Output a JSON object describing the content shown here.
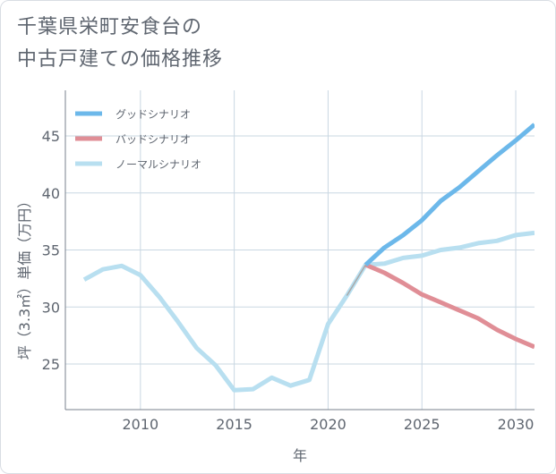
{
  "chart_data": {
    "type": "line",
    "title_line1": "千葉県栄町安食台の",
    "title_line2": "中古戸建ての価格推移",
    "xlabel": "年",
    "ylabel": "坪（3.3㎡）単価（万円）",
    "xlim": [
      2006,
      2031
    ],
    "ylim": [
      21,
      49
    ],
    "xticks": [
      2010,
      2015,
      2020,
      2025,
      2030
    ],
    "yticks": [
      25,
      30,
      35,
      40,
      45
    ],
    "grid": true,
    "legend_position": "top-left",
    "series": [
      {
        "name": "グッドシナリオ",
        "color": "#6cb8ea",
        "points": [
          [
            2022,
            33.7
          ],
          [
            2023,
            35.2
          ],
          [
            2024,
            36.3
          ],
          [
            2025,
            37.6
          ],
          [
            2026,
            39.3
          ],
          [
            2027,
            40.5
          ],
          [
            2028,
            41.9
          ],
          [
            2029,
            43.3
          ],
          [
            2030,
            44.6
          ],
          [
            2031,
            46.0
          ]
        ]
      },
      {
        "name": "バッドシナリオ",
        "color": "#e08e96",
        "points": [
          [
            2022,
            33.7
          ],
          [
            2023,
            33.0
          ],
          [
            2024,
            32.1
          ],
          [
            2025,
            31.1
          ],
          [
            2026,
            30.4
          ],
          [
            2027,
            29.7
          ],
          [
            2028,
            29.0
          ],
          [
            2029,
            28.0
          ],
          [
            2030,
            27.2
          ],
          [
            2031,
            26.5
          ]
        ]
      },
      {
        "name": "ノーマルシナリオ",
        "color": "#b8dff0",
        "points": [
          [
            2007,
            32.4
          ],
          [
            2008,
            33.3
          ],
          [
            2009,
            33.6
          ],
          [
            2010,
            32.8
          ],
          [
            2011,
            30.9
          ],
          [
            2012,
            28.7
          ],
          [
            2013,
            26.4
          ],
          [
            2014,
            24.9
          ],
          [
            2015,
            22.7
          ],
          [
            2016,
            22.8
          ],
          [
            2017,
            23.8
          ],
          [
            2018,
            23.1
          ],
          [
            2019,
            23.6
          ],
          [
            2020,
            28.5
          ],
          [
            2021,
            31.0
          ],
          [
            2022,
            33.7
          ],
          [
            2023,
            33.8
          ],
          [
            2024,
            34.3
          ],
          [
            2025,
            34.5
          ],
          [
            2026,
            35.0
          ],
          [
            2027,
            35.2
          ],
          [
            2028,
            35.6
          ],
          [
            2029,
            35.8
          ],
          [
            2030,
            36.3
          ],
          [
            2031,
            36.5
          ]
        ]
      }
    ]
  },
  "colors": {
    "grid": "#c9d7e2",
    "axis": "#7a828c",
    "connector": "#a9a9a9"
  }
}
